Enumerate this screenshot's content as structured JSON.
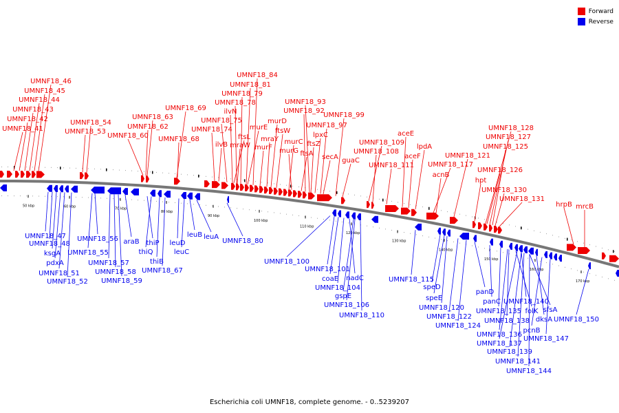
{
  "caption": "Escherichia coli UMNF18, complete genome. - 0..5239207",
  "legend": [
    {
      "label": "Forward",
      "color": "#ee0000"
    },
    {
      "label": "Reverse",
      "color": "#0000ee"
    }
  ],
  "colors": {
    "forward": "#ee0000",
    "reverse": "#0000ee",
    "backbone": "#777777"
  },
  "ticks": [
    "50 kbp",
    "60 kbp",
    "70 kbp",
    "80 kbp",
    "90 kbp",
    "100 kbp",
    "110 kbp",
    "120 kbp",
    "130 kbp",
    "140 kbp",
    "150 kbp",
    "160 kbp",
    "170 kbp"
  ],
  "forward_labels": [
    "UMNF18_46",
    "UMNF18_45",
    "UMNF18_44",
    "UMNF18_43",
    "UMNF18_42",
    "UMNF18_41",
    "UMNF18_54",
    "UMNF18_53",
    "UMNF18_60",
    "UMNF18_63",
    "UMNF18_62",
    "UMNF18_69",
    "UMNF18_68",
    "UMNF18_84",
    "UMNF18_81",
    "UMNF18_79",
    "UMNF18_78",
    "ilvN",
    "UMNF18_75",
    "UMNF18_74",
    "ilvB",
    "ftsL",
    "mraW",
    "murE",
    "murF",
    "mraY",
    "murD",
    "ftsW",
    "murC",
    "murG",
    "ftsA",
    "UMNF18_93",
    "UMNF18_92",
    "ftsZ",
    "lpxC",
    "UMNF18_97",
    "secA",
    "UMNF18_99",
    "guaC",
    "UMNF18_109",
    "UMNF18_108",
    "UMNF18_111",
    "aceE",
    "aceF",
    "lpdA",
    "UMNF18_117",
    "acnB",
    "UMNF18_121",
    "hpt",
    "UMNF18_128",
    "UMNF18_127",
    "UMNF18_125",
    "UMNF18_126",
    "UMNF18_130",
    "UMNF18_131",
    "hrpB",
    "mrcB"
  ],
  "reverse_labels": [
    "UMNF18_47",
    "UMNF18_48",
    "ksgA",
    "pdxA",
    "UMNF18_51",
    "UMNF18_52",
    "UMNF18_56",
    "UMNF18_55",
    "UMNF18_57",
    "UMNF18_58",
    "UMNF18_59",
    "araB",
    "thiP",
    "thiQ",
    "thiB",
    "UMNF18_67",
    "leuD",
    "leuC",
    "leuB",
    "leuA",
    "UMNF18_80",
    "UMNF18_100",
    "UMNF18_101",
    "coaE",
    "UMNF18_104",
    "nadC",
    "gspE",
    "UMNF18_106",
    "UMNF18_110",
    "UMNF18_115",
    "speD",
    "speE",
    "UMNF18_120",
    "UMNF18_122",
    "UMNF18_124",
    "panD",
    "panC",
    "UMNF18_135",
    "UMNF18_138",
    "folK",
    "UMNF18_140",
    "sfsA",
    "dksA",
    "UMNF18_136",
    "pcnB",
    "UMNF18_137",
    "UMNF18_139",
    "UMNF18_147",
    "UMNF18_141",
    "UMNF18_144",
    "UMNF18_150"
  ]
}
